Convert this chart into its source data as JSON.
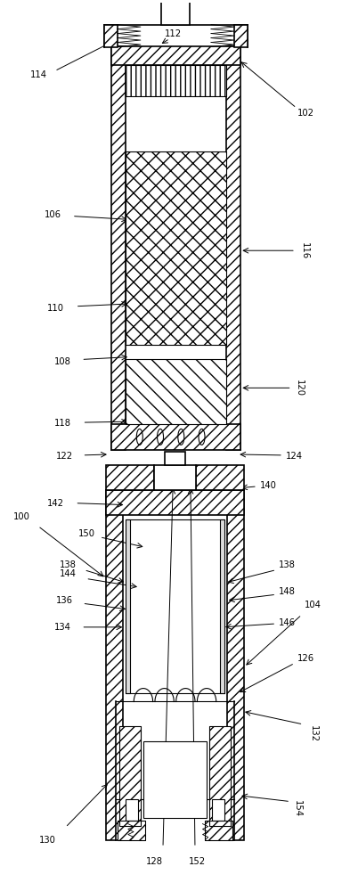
{
  "bg_color": "#ffffff",
  "fig_width": 3.93,
  "fig_height": 10.0,
  "dpi": 100,
  "upper": {
    "ox": 0.3,
    "oy": 0.055,
    "ow": 0.4,
    "oh": 0.395,
    "wall_t": 0.048
  },
  "lower": {
    "ox": 0.315,
    "oy": 0.495,
    "ow": 0.375,
    "oh": 0.455,
    "wall_t": 0.042
  }
}
